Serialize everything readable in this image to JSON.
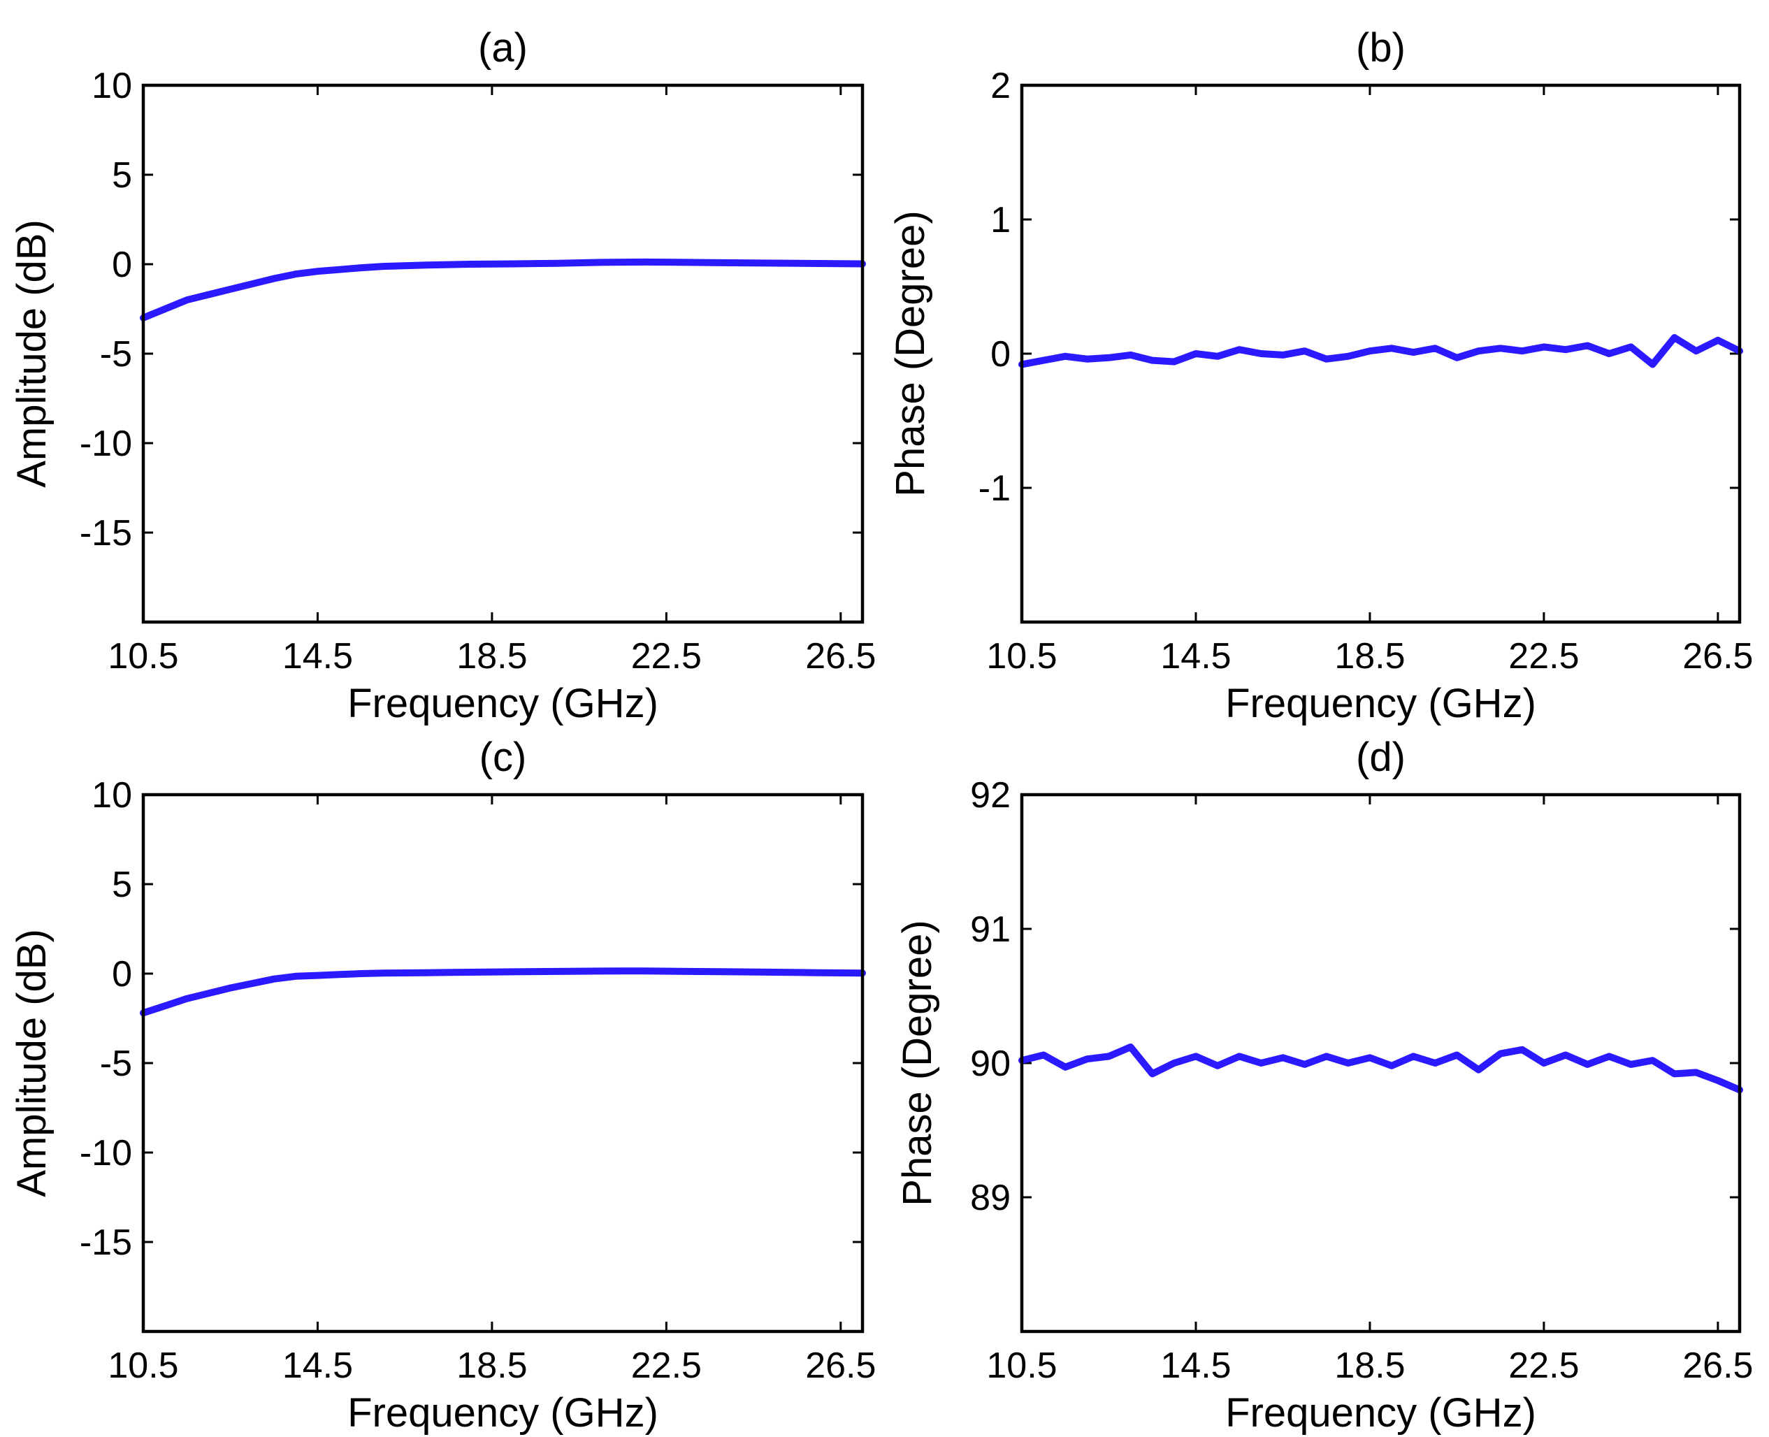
{
  "chart_data": [
    {
      "id": "a",
      "type": "line",
      "title": "(a)",
      "xlabel": "Frequency (GHz)",
      "ylabel": "Amplitude (dB)",
      "xlim": [
        10.5,
        27
      ],
      "ylim": [
        -20,
        10
      ],
      "xticks": [
        10.5,
        14.5,
        18.5,
        22.5,
        26.5
      ],
      "xtick_labels": [
        "10.5",
        "14.5",
        "18.5",
        "22.5",
        "26.5"
      ],
      "yticks": [
        -15,
        -10,
        -5,
        0,
        5,
        10
      ],
      "ytick_labels": [
        "-15",
        "-10",
        "-5",
        "0",
        "5",
        "10"
      ],
      "line_color": "#2b1aff",
      "series": [
        {
          "name": "amplitude",
          "x": [
            10.5,
            11.0,
            11.5,
            12.0,
            12.5,
            13.0,
            13.5,
            14.0,
            14.5,
            15.0,
            15.5,
            16.0,
            17.0,
            18.0,
            19.0,
            20.0,
            21.0,
            22.0,
            23.0,
            24.0,
            25.0,
            26.0,
            27.0
          ],
          "y": [
            -3.0,
            -2.5,
            -2.0,
            -1.7,
            -1.4,
            -1.1,
            -0.8,
            -0.55,
            -0.4,
            -0.3,
            -0.2,
            -0.12,
            -0.05,
            0.0,
            0.02,
            0.05,
            0.1,
            0.12,
            0.1,
            0.08,
            0.06,
            0.04,
            0.02
          ]
        }
      ]
    },
    {
      "id": "b",
      "type": "line",
      "title": "(b)",
      "xlabel": "Frequency (GHz)",
      "ylabel": "Phase (Degree)",
      "xlim": [
        10.5,
        27
      ],
      "ylim": [
        -2,
        2
      ],
      "xticks": [
        10.5,
        14.5,
        18.5,
        22.5,
        26.5
      ],
      "xtick_labels": [
        "10.5",
        "14.5",
        "18.5",
        "22.5",
        "26.5"
      ],
      "yticks": [
        -1,
        0,
        1,
        2
      ],
      "ytick_labels": [
        "-1",
        "0",
        "1",
        "2"
      ],
      "line_color": "#2b1aff",
      "series": [
        {
          "name": "phase",
          "x": [
            10.5,
            11.0,
            11.5,
            12.0,
            12.5,
            13.0,
            13.5,
            14.0,
            14.5,
            15.0,
            15.5,
            16.0,
            16.5,
            17.0,
            17.5,
            18.0,
            18.5,
            19.0,
            19.5,
            20.0,
            20.5,
            21.0,
            21.5,
            22.0,
            22.5,
            23.0,
            23.5,
            24.0,
            24.5,
            25.0,
            25.5,
            26.0,
            26.5,
            27.0
          ],
          "y": [
            -0.08,
            -0.05,
            -0.02,
            -0.04,
            -0.03,
            -0.01,
            -0.05,
            -0.06,
            0.0,
            -0.02,
            0.03,
            0.0,
            -0.01,
            0.02,
            -0.04,
            -0.02,
            0.02,
            0.04,
            0.01,
            0.04,
            -0.03,
            0.02,
            0.04,
            0.02,
            0.05,
            0.03,
            0.06,
            0.0,
            0.05,
            -0.08,
            0.12,
            0.02,
            0.1,
            0.02
          ]
        }
      ]
    },
    {
      "id": "c",
      "type": "line",
      "title": "(c)",
      "xlabel": "Frequency (GHz)",
      "ylabel": "Amplitude (dB)",
      "xlim": [
        10.5,
        27
      ],
      "ylim": [
        -20,
        10
      ],
      "xticks": [
        10.5,
        14.5,
        18.5,
        22.5,
        26.5
      ],
      "xtick_labels": [
        "10.5",
        "14.5",
        "18.5",
        "22.5",
        "26.5"
      ],
      "yticks": [
        -15,
        -10,
        -5,
        0,
        5,
        10
      ],
      "ytick_labels": [
        "-15",
        "-10",
        "-5",
        "0",
        "5",
        "10"
      ],
      "line_color": "#2b1aff",
      "series": [
        {
          "name": "amplitude",
          "x": [
            10.5,
            11.0,
            11.5,
            12.0,
            12.5,
            13.0,
            13.5,
            14.0,
            14.5,
            15.0,
            15.5,
            16.0,
            17.0,
            18.0,
            19.0,
            20.0,
            21.0,
            22.0,
            23.0,
            24.0,
            25.0,
            26.0,
            27.0
          ],
          "y": [
            -2.2,
            -1.8,
            -1.4,
            -1.1,
            -0.8,
            -0.55,
            -0.3,
            -0.15,
            -0.1,
            -0.05,
            0.0,
            0.03,
            0.05,
            0.08,
            0.1,
            0.12,
            0.14,
            0.15,
            0.12,
            0.1,
            0.08,
            0.05,
            0.03
          ]
        }
      ]
    },
    {
      "id": "d",
      "type": "line",
      "title": "(d)",
      "xlabel": "Frequency (GHz)",
      "ylabel": "Phase (Degree)",
      "xlim": [
        10.5,
        27
      ],
      "ylim": [
        88,
        92
      ],
      "xticks": [
        10.5,
        14.5,
        18.5,
        22.5,
        26.5
      ],
      "xtick_labels": [
        "10.5",
        "14.5",
        "18.5",
        "22.5",
        "26.5"
      ],
      "yticks": [
        89,
        90,
        91,
        92
      ],
      "ytick_labels": [
        "89",
        "90",
        "91",
        "92"
      ],
      "line_color": "#2b1aff",
      "series": [
        {
          "name": "phase",
          "x": [
            10.5,
            11.0,
            11.5,
            12.0,
            12.5,
            13.0,
            13.5,
            14.0,
            14.5,
            15.0,
            15.5,
            16.0,
            16.5,
            17.0,
            17.5,
            18.0,
            18.5,
            19.0,
            19.5,
            20.0,
            20.5,
            21.0,
            21.5,
            22.0,
            22.5,
            23.0,
            23.5,
            24.0,
            24.5,
            25.0,
            25.5,
            26.0,
            26.5,
            27.0
          ],
          "y": [
            90.02,
            90.06,
            89.97,
            90.03,
            90.05,
            90.12,
            89.92,
            90.0,
            90.05,
            89.98,
            90.05,
            90.0,
            90.04,
            89.99,
            90.05,
            90.0,
            90.04,
            89.98,
            90.05,
            90.0,
            90.06,
            89.95,
            90.07,
            90.1,
            90.0,
            90.06,
            89.99,
            90.05,
            89.99,
            90.02,
            89.92,
            89.93,
            89.87,
            89.8
          ]
        }
      ]
    }
  ]
}
